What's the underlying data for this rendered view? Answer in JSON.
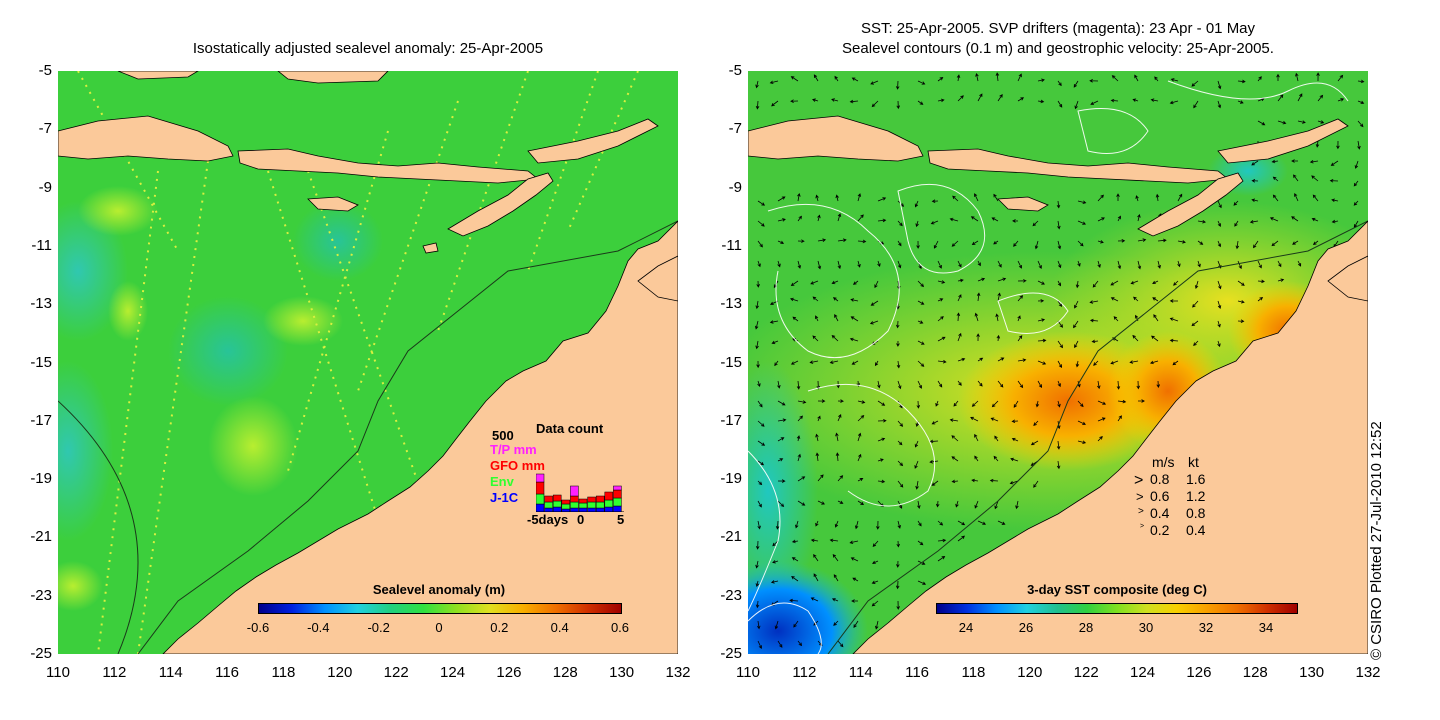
{
  "left_panel": {
    "title": "Isostatically adjusted sealevel anomaly: 25-Apr-2005",
    "colorbar": {
      "label": "Sealevel anomaly (m)",
      "ticks": [
        "-0.6",
        "-0.4",
        "-0.2",
        "0",
        "0.2",
        "0.4",
        "0.6"
      ],
      "colors": [
        "#00008b",
        "#0020e0",
        "#0090ff",
        "#20d0e0",
        "#20d080",
        "#30e040",
        "#90e020",
        "#e0e020",
        "#f8b000",
        "#f07000",
        "#d03000",
        "#a00000"
      ]
    },
    "data_count": {
      "title": "Data count",
      "y_max": "500",
      "legend": [
        {
          "label": "T/P mm",
          "color": "#ff20ff"
        },
        {
          "label": "GFO mm",
          "color": "#ff0000"
        },
        {
          "label": "Env",
          "color": "#30ff30"
        },
        {
          "label": "J-1C",
          "color": "#0000ff"
        }
      ],
      "x_start": "-5days",
      "x_mid": "0",
      "x_end": "5"
    }
  },
  "right_panel": {
    "title_line1": "SST: 25-Apr-2005. SVP drifters (magenta): 23 Apr - 01 May",
    "title_line2": "Sealevel contours (0.1 m) and geostrophic velocity: 25-Apr-2005.",
    "colorbar": {
      "label": "3-day SST composite (deg C)",
      "ticks": [
        "24",
        "26",
        "28",
        "30",
        "32",
        "34"
      ],
      "colors": [
        "#00008b",
        "#0030e0",
        "#0090ff",
        "#20d0e0",
        "#20c090",
        "#30d040",
        "#80e020",
        "#d0e020",
        "#f8d000",
        "#f8a000",
        "#f07000",
        "#d03000",
        "#a00000"
      ]
    },
    "velocity_legend": {
      "header_ms": "m/s",
      "header_kt": "kt",
      "rows": [
        {
          "ms": "0.8",
          "kt": "1.6"
        },
        {
          "ms": "0.6",
          "kt": "1.2"
        },
        {
          "ms": "0.4",
          "kt": "0.8"
        },
        {
          "ms": "0.2",
          "kt": "0.4"
        }
      ]
    }
  },
  "y_ticks": [
    "-5",
    "-7",
    "-9",
    "-11",
    "-13",
    "-15",
    "-17",
    "-19",
    "-21",
    "-23",
    "-25"
  ],
  "x_ticks": [
    "110",
    "112",
    "114",
    "116",
    "118",
    "120",
    "122",
    "124",
    "126",
    "128",
    "130",
    "132"
  ],
  "credit": "© CSIRO Plotted 27-Jul-2010 12:52",
  "colors": {
    "land": "#fbc99a",
    "ocean_base_left": "#3ccf3c",
    "ocean_base_right": "#46c83c"
  }
}
